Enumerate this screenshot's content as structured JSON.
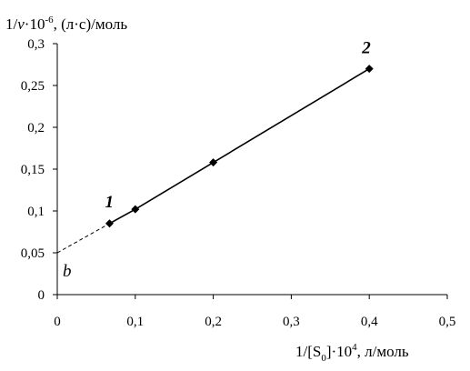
{
  "chart_data": {
    "type": "line",
    "y_axis_title": {
      "prefix": "1/",
      "var": "v",
      "mid": "·10",
      "exp": "-6",
      "suffix": ", (л·с)/моль"
    },
    "x_axis_title": {
      "prefix": "1/[S",
      "sub": "0",
      "mid": "]·10",
      "exp": "4",
      "suffix": ", л/моль"
    },
    "xlim": [
      0,
      0.5
    ],
    "ylim": [
      0,
      0.3
    ],
    "x_ticks": [
      0,
      0.1,
      0.2,
      0.3,
      0.4,
      0.5
    ],
    "x_tick_labels": [
      "0",
      "0,1",
      "0,2",
      "0,3",
      "0,4",
      "0,5"
    ],
    "y_ticks": [
      0,
      0.05,
      0.1,
      0.15,
      0.2,
      0.25,
      0.3
    ],
    "y_tick_labels": [
      "0",
      "0,05",
      "0,1",
      "0,15",
      "0,2",
      "0,25",
      "0,3"
    ],
    "grid": false,
    "series": [
      {
        "x": [
          0.067,
          0.1,
          0.2,
          0.4
        ],
        "y": [
          0.085,
          0.102,
          0.158,
          0.27
        ],
        "marker": "diamond",
        "line": "solid",
        "color": "#000000"
      }
    ],
    "extrapolation": {
      "x": [
        0,
        0.067
      ],
      "y": [
        0.05,
        0.085
      ],
      "line": "dashed",
      "color": "#000000"
    },
    "point_labels": [
      {
        "text": "1",
        "x": 0.067,
        "y": 0.085
      },
      {
        "text": "2",
        "x": 0.4,
        "y": 0.27
      }
    ],
    "intercept_label": {
      "text": "b",
      "x": 0,
      "y": 0.05
    }
  }
}
